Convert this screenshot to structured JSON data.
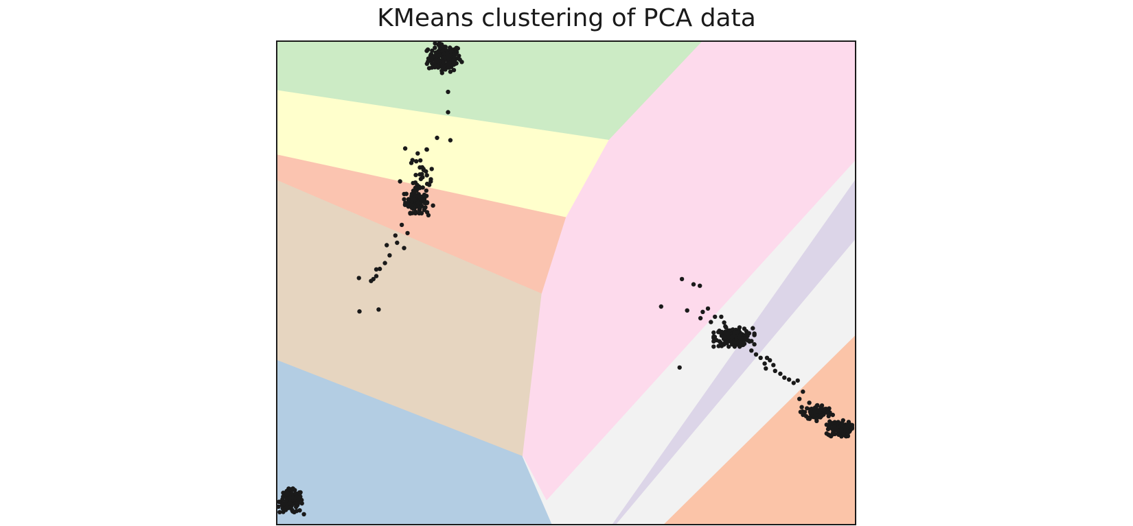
{
  "chart_data": {
    "type": "scatter",
    "title": "KMeans clustering of PCA data",
    "xlabel": "",
    "ylabel": "",
    "xlim": [
      0,
      1
    ],
    "ylim": [
      0,
      1
    ],
    "grid": false,
    "axis_ticks": false,
    "point_color": "#1a1a1a",
    "regions": [
      {
        "cluster": 1,
        "color": "#ccebc5",
        "polygon": [
          [
            0.0,
            1.0
          ],
          [
            0.736,
            1.0
          ],
          [
            0.574,
            0.795
          ],
          [
            0.0,
            0.898
          ]
        ]
      },
      {
        "cluster": 2,
        "color": "#ffffcc",
        "polygon": [
          [
            0.0,
            0.898
          ],
          [
            0.574,
            0.795
          ],
          [
            0.5,
            0.635
          ],
          [
            0.0,
            0.765
          ]
        ]
      },
      {
        "cluster": 3,
        "color": "#fbc4b0",
        "polygon": [
          [
            0.0,
            0.765
          ],
          [
            0.5,
            0.635
          ],
          [
            0.458,
            0.477
          ],
          [
            0.0,
            0.712
          ]
        ]
      },
      {
        "cluster": 4,
        "color": "#e6d5c0",
        "polygon": [
          [
            0.0,
            0.712
          ],
          [
            0.458,
            0.477
          ],
          [
            0.425,
            0.141
          ],
          [
            0.0,
            0.34
          ]
        ]
      },
      {
        "cluster": 5,
        "color": "#b3cde3",
        "polygon": [
          [
            0.0,
            0.34
          ],
          [
            0.425,
            0.141
          ],
          [
            0.476,
            0.0
          ],
          [
            0.0,
            0.0
          ]
        ]
      },
      {
        "cluster": 6,
        "color": "#fddaec",
        "polygon": [
          [
            0.736,
            1.0
          ],
          [
            1.0,
            1.0
          ],
          [
            1.0,
            0.753
          ],
          [
            0.466,
            0.049
          ],
          [
            0.425,
            0.141
          ],
          [
            0.458,
            0.477
          ],
          [
            0.5,
            0.635
          ],
          [
            0.574,
            0.795
          ]
        ]
      },
      {
        "cluster": 7,
        "color": "#f2f2f2",
        "polygon": [
          [
            1.0,
            0.753
          ],
          [
            1.0,
            0.391
          ],
          [
            0.669,
            0.0
          ],
          [
            0.476,
            0.0
          ],
          [
            0.425,
            0.141
          ],
          [
            0.466,
            0.049
          ]
        ]
      },
      {
        "cluster": 8,
        "color": "#dcd5e8",
        "polygon": [
          [
            1.0,
            0.713
          ],
          [
            1.0,
            0.592
          ],
          [
            0.585,
            0.0
          ],
          [
            0.58,
            0.0
          ]
        ]
      },
      {
        "cluster": 9,
        "color": "#fbc4a8",
        "polygon": [
          [
            1.0,
            0.391
          ],
          [
            1.0,
            0.0
          ],
          [
            0.669,
            0.0
          ]
        ]
      }
    ],
    "clusters": [
      {
        "center": [
          0.29,
          0.965
        ],
        "spread": [
          0.014,
          0.014
        ],
        "count": 170
      },
      {
        "center": [
          0.24,
          0.67
        ],
        "spread": [
          0.009,
          0.012
        ],
        "count": 90
      },
      {
        "center": [
          0.25,
          0.71
        ],
        "spread": [
          0.01,
          0.03
        ],
        "count": 40
      },
      {
        "center": [
          0.025,
          0.048
        ],
        "spread": [
          0.01,
          0.012
        ],
        "count": 140
      },
      {
        "center": [
          0.79,
          0.388
        ],
        "spread": [
          0.016,
          0.009
        ],
        "count": 170
      },
      {
        "center": [
          0.935,
          0.232
        ],
        "spread": [
          0.012,
          0.008
        ],
        "count": 90
      },
      {
        "center": [
          0.972,
          0.198
        ],
        "spread": [
          0.01,
          0.008
        ],
        "count": 110
      }
    ],
    "points": [
      [
        0.296,
        0.895
      ],
      [
        0.296,
        0.853
      ],
      [
        0.277,
        0.8
      ],
      [
        0.3,
        0.795
      ],
      [
        0.222,
        0.778
      ],
      [
        0.228,
        0.67
      ],
      [
        0.205,
        0.598
      ],
      [
        0.208,
        0.583
      ],
      [
        0.226,
        0.603
      ],
      [
        0.22,
        0.572
      ],
      [
        0.19,
        0.578
      ],
      [
        0.195,
        0.557
      ],
      [
        0.187,
        0.541
      ],
      [
        0.178,
        0.529
      ],
      [
        0.172,
        0.514
      ],
      [
        0.167,
        0.508
      ],
      [
        0.163,
        0.504
      ],
      [
        0.142,
        0.51
      ],
      [
        0.172,
        0.528
      ],
      [
        0.143,
        0.441
      ],
      [
        0.176,
        0.445
      ],
      [
        0.262,
        0.64
      ],
      [
        0.27,
        0.66
      ],
      [
        0.216,
        0.62
      ],
      [
        0.213,
        0.71
      ],
      [
        0.7,
        0.508
      ],
      [
        0.72,
        0.497
      ],
      [
        0.731,
        0.494
      ],
      [
        0.664,
        0.451
      ],
      [
        0.709,
        0.443
      ],
      [
        0.736,
        0.44
      ],
      [
        0.745,
        0.447
      ],
      [
        0.732,
        0.427
      ],
      [
        0.757,
        0.43
      ],
      [
        0.75,
        0.419
      ],
      [
        0.768,
        0.43
      ],
      [
        0.773,
        0.418
      ],
      [
        0.775,
        0.41
      ],
      [
        0.696,
        0.325
      ],
      [
        0.836,
        0.345
      ],
      [
        0.847,
        0.345
      ],
      [
        0.852,
        0.34
      ],
      [
        0.843,
        0.333
      ],
      [
        0.858,
        0.33
      ],
      [
        0.845,
        0.323
      ],
      [
        0.861,
        0.318
      ],
      [
        0.87,
        0.312
      ],
      [
        0.877,
        0.304
      ],
      [
        0.885,
        0.3
      ],
      [
        0.893,
        0.293
      ],
      [
        0.9,
        0.298
      ],
      [
        0.909,
        0.275
      ],
      [
        0.903,
        0.26
      ],
      [
        0.92,
        0.252
      ],
      [
        0.907,
        0.243
      ],
      [
        0.905,
        0.233
      ],
      [
        0.955,
        0.207
      ],
      [
        0.962,
        0.188
      ],
      [
        0.82,
        0.36
      ],
      [
        0.828,
        0.352
      ]
    ]
  }
}
